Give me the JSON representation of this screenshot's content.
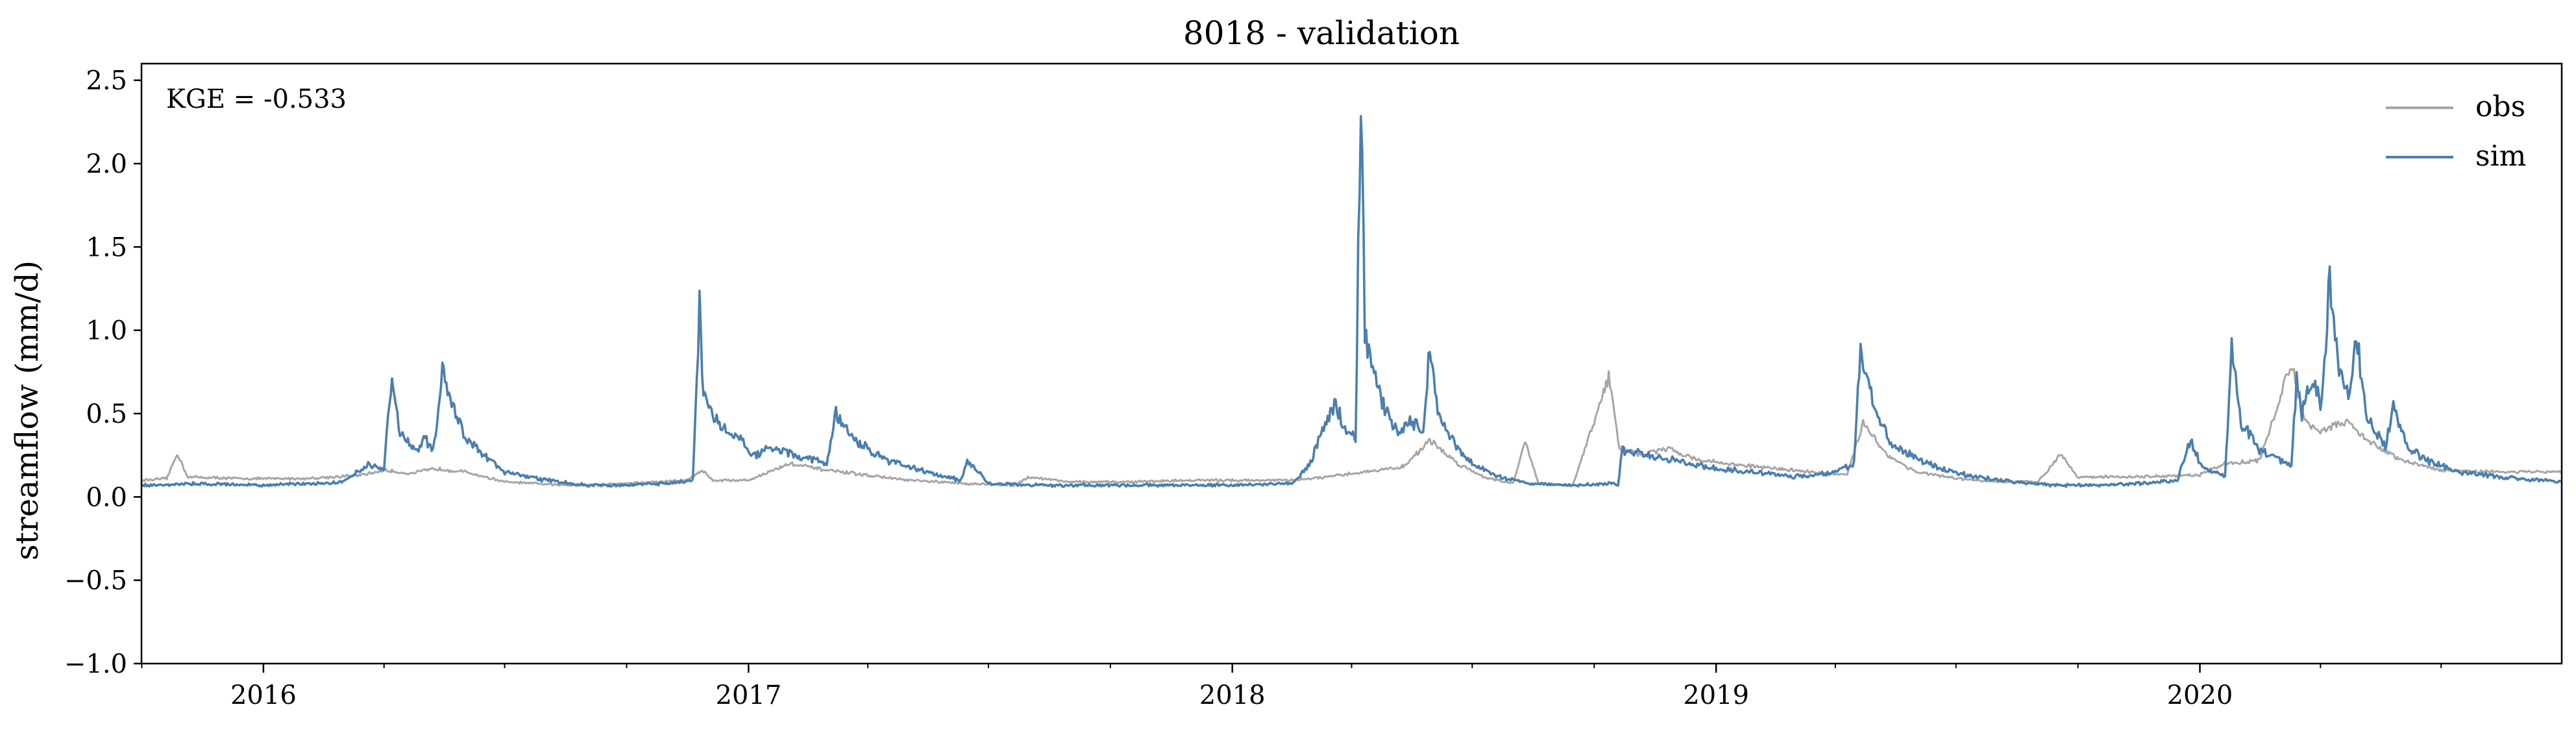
{
  "chart_data": {
    "type": "line",
    "title": "8018 - validation",
    "xlabel": "",
    "ylabel": "streamflow (mm/d)",
    "annotation": "KGE = -0.533",
    "x_start": "2015-10-01",
    "x_end": "2020-09-30",
    "xlim": [
      "2015-10-01",
      "2020-09-30"
    ],
    "ylim": [
      -1.0,
      2.6
    ],
    "x_ticks": [
      "2016",
      "2017",
      "2018",
      "2019",
      "2020"
    ],
    "y_ticks": [
      "−1.0",
      "−0.5",
      "0.0",
      "0.5",
      "1.0",
      "1.5",
      "2.0",
      "2.5"
    ],
    "grid": false,
    "legend_position": "top-right",
    "series": [
      {
        "name": "obs",
        "color": "#a6a6a6",
        "x": [
          "2015-10-01",
          "2015-10-20",
          "2015-10-28",
          "2015-11-05",
          "2015-12-15",
          "2016-02-01",
          "2016-03-15",
          "2016-04-01",
          "2016-04-20",
          "2016-05-10",
          "2016-06-01",
          "2016-07-01",
          "2016-08-15",
          "2016-09-30",
          "2016-11-15",
          "2016-11-27",
          "2016-12-05",
          "2017-01-01",
          "2017-02-01",
          "2017-03-01",
          "2017-04-01",
          "2017-05-01",
          "2017-06-15",
          "2017-07-20",
          "2017-08-01",
          "2017-09-01",
          "2017-10-15",
          "2017-12-01",
          "2018-01-15",
          "2018-02-15",
          "2018-03-15",
          "2018-04-10",
          "2018-05-10",
          "2018-05-30",
          "2018-06-20",
          "2018-07-10",
          "2018-08-01",
          "2018-08-10",
          "2018-08-20",
          "2018-09-15",
          "2018-10-12",
          "2018-10-20",
          "2018-10-26",
          "2018-11-05",
          "2018-11-25",
          "2018-12-20",
          "2019-01-20",
          "2019-03-01",
          "2019-04-10",
          "2019-04-22",
          "2019-05-10",
          "2019-06-01",
          "2019-07-01",
          "2019-08-01",
          "2019-09-01",
          "2019-09-18",
          "2019-10-01",
          "2019-11-15",
          "2019-12-31",
          "2020-01-20",
          "2020-02-15",
          "2020-03-10",
          "2020-03-20",
          "2020-04-01",
          "2020-04-20",
          "2020-05-10",
          "2020-06-01",
          "2020-07-01",
          "2020-08-01",
          "2020-09-30"
        ],
        "y": [
          0.1,
          0.11,
          0.26,
          0.12,
          0.11,
          0.11,
          0.13,
          0.16,
          0.14,
          0.17,
          0.15,
          0.09,
          0.07,
          0.08,
          0.1,
          0.16,
          0.1,
          0.1,
          0.2,
          0.16,
          0.13,
          0.1,
          0.08,
          0.07,
          0.12,
          0.09,
          0.09,
          0.1,
          0.1,
          0.1,
          0.12,
          0.15,
          0.18,
          0.34,
          0.2,
          0.12,
          0.08,
          0.34,
          0.08,
          0.07,
          0.72,
          0.3,
          0.28,
          0.25,
          0.29,
          0.22,
          0.19,
          0.16,
          0.13,
          0.45,
          0.25,
          0.15,
          0.11,
          0.09,
          0.09,
          0.26,
          0.12,
          0.12,
          0.13,
          0.2,
          0.22,
          0.8,
          0.45,
          0.4,
          0.45,
          0.32,
          0.22,
          0.16,
          0.15,
          0.15
        ]
      },
      {
        "name": "sim",
        "color": "#4a7fae",
        "x": [
          "2015-10-01",
          "2015-11-15",
          "2016-01-01",
          "2016-03-01",
          "2016-03-20",
          "2016-04-01",
          "2016-04-07",
          "2016-04-12",
          "2016-04-25",
          "2016-05-02",
          "2016-05-08",
          "2016-05-15",
          "2016-06-01",
          "2016-07-01",
          "2016-08-01",
          "2016-09-01",
          "2016-10-01",
          "2016-11-01",
          "2016-11-20",
          "2016-11-25",
          "2016-11-28",
          "2016-12-05",
          "2016-12-15",
          "2016-12-25",
          "2017-01-05",
          "2017-01-20",
          "2017-02-05",
          "2017-02-20",
          "2017-03-01",
          "2017-03-08",
          "2017-03-20",
          "2017-04-15",
          "2017-05-15",
          "2017-06-10",
          "2017-06-15",
          "2017-07-01",
          "2017-08-15",
          "2017-10-01",
          "2017-11-15",
          "2018-01-01",
          "2018-02-15",
          "2018-03-01",
          "2018-03-10",
          "2018-03-20",
          "2018-03-28",
          "2018-04-04",
          "2018-04-08",
          "2018-04-11",
          "2018-04-15",
          "2018-04-25",
          "2018-05-05",
          "2018-05-15",
          "2018-05-25",
          "2018-05-30",
          "2018-06-05",
          "2018-06-15",
          "2018-07-01",
          "2018-07-20",
          "2018-08-15",
          "2018-09-15",
          "2018-10-15",
          "2018-10-19",
          "2018-10-22",
          "2018-11-10",
          "2018-12-01",
          "2019-01-01",
          "2019-02-01",
          "2019-03-01",
          "2019-04-01",
          "2019-04-15",
          "2019-04-20",
          "2019-05-01",
          "2019-05-15",
          "2019-06-15",
          "2019-07-15",
          "2019-08-15",
          "2019-09-15",
          "2019-10-15",
          "2019-11-15",
          "2019-12-15",
          "2019-12-25",
          "2020-01-01",
          "2020-01-10",
          "2020-01-20",
          "2020-01-25",
          "2020-02-01",
          "2020-02-15",
          "2020-03-01",
          "2020-03-10",
          "2020-03-14",
          "2020-03-18",
          "2020-03-25",
          "2020-04-02",
          "2020-04-08",
          "2020-04-15",
          "2020-04-22",
          "2020-04-28",
          "2020-05-05",
          "2020-05-12",
          "2020-05-20",
          "2020-05-26",
          "2020-06-05",
          "2020-06-20",
          "2020-07-15",
          "2020-08-15",
          "2020-09-30"
        ],
        "y": [
          0.07,
          0.08,
          0.07,
          0.09,
          0.2,
          0.16,
          0.76,
          0.4,
          0.28,
          0.35,
          0.27,
          0.74,
          0.35,
          0.15,
          0.1,
          0.07,
          0.07,
          0.08,
          0.1,
          1.15,
          0.6,
          0.48,
          0.4,
          0.35,
          0.25,
          0.3,
          0.25,
          0.22,
          0.2,
          0.5,
          0.35,
          0.22,
          0.15,
          0.1,
          0.22,
          0.08,
          0.07,
          0.07,
          0.07,
          0.07,
          0.08,
          0.2,
          0.42,
          0.55,
          0.4,
          0.35,
          2.51,
          1.0,
          0.8,
          0.55,
          0.4,
          0.45,
          0.4,
          0.91,
          0.5,
          0.35,
          0.2,
          0.12,
          0.08,
          0.07,
          0.08,
          0.07,
          0.28,
          0.25,
          0.22,
          0.17,
          0.15,
          0.12,
          0.15,
          0.2,
          0.9,
          0.5,
          0.3,
          0.18,
          0.12,
          0.09,
          0.07,
          0.07,
          0.08,
          0.1,
          0.35,
          0.2,
          0.15,
          0.12,
          0.9,
          0.45,
          0.28,
          0.22,
          0.18,
          0.7,
          0.5,
          0.7,
          0.55,
          1.31,
          0.75,
          0.6,
          0.99,
          0.5,
          0.4,
          0.3,
          0.55,
          0.3,
          0.22,
          0.15,
          0.12,
          0.09
        ]
      }
    ]
  }
}
